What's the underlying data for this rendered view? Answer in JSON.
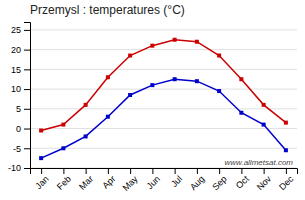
{
  "chart_data": {
    "type": "line",
    "title": "Przemysl : temperatures (°C)",
    "categories": [
      "Jan",
      "Feb",
      "Mar",
      "Apr",
      "May",
      "Jun",
      "Jul",
      "Aug",
      "Sep",
      "Oct",
      "Nov",
      "Dec"
    ],
    "series": [
      {
        "color": "#cc0000",
        "values": [
          -0.5,
          1.0,
          6.0,
          13.0,
          18.5,
          21.0,
          22.5,
          22.0,
          18.5,
          12.5,
          6.0,
          1.5
        ]
      },
      {
        "color": "#0000cc",
        "values": [
          -7.5,
          -5.0,
          -2.0,
          3.0,
          8.5,
          11.0,
          12.5,
          12.0,
          9.5,
          4.0,
          1.0,
          -5.5
        ]
      }
    ],
    "ylim": [
      -10,
      27
    ],
    "yticks": [
      -10,
      -5,
      0,
      5,
      10,
      15,
      20,
      25
    ],
    "grid": true,
    "marker": "square",
    "annotations": [
      "www.allmetsat.com"
    ]
  }
}
